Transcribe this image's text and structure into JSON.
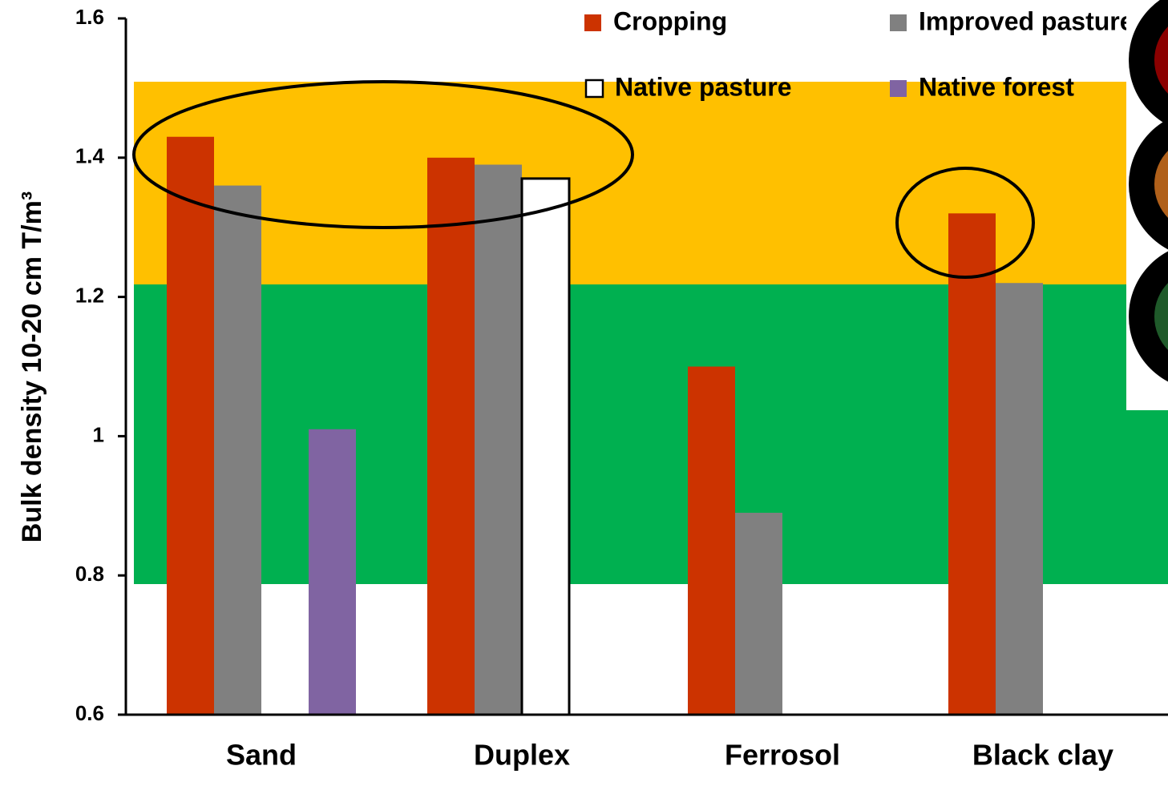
{
  "chart_data": {
    "type": "bar",
    "y_label": "Bulk density 10-20 cm T/m³",
    "categories": [
      "Sand",
      "Duplex",
      "Ferrosol",
      "Black clay"
    ],
    "series": [
      {
        "name": "Cropping",
        "color": "#cc3300",
        "values": [
          1.43,
          1.4,
          1.1,
          1.32
        ]
      },
      {
        "name": "Improved pasture",
        "color": "#808080",
        "values": [
          1.36,
          1.39,
          0.89,
          1.22
        ]
      },
      {
        "name": "Native pasture",
        "color": "#ffffff",
        "values": [
          null,
          1.37,
          null,
          null
        ]
      },
      {
        "name": "Native forest",
        "color": "#8064a2",
        "values": [
          1.01,
          null,
          null,
          null
        ]
      }
    ],
    "ylim": [
      0.6,
      1.6
    ],
    "yticks": [
      0.6,
      0.8,
      1,
      1.2,
      1.4,
      1.6
    ],
    "grid": false
  }
}
